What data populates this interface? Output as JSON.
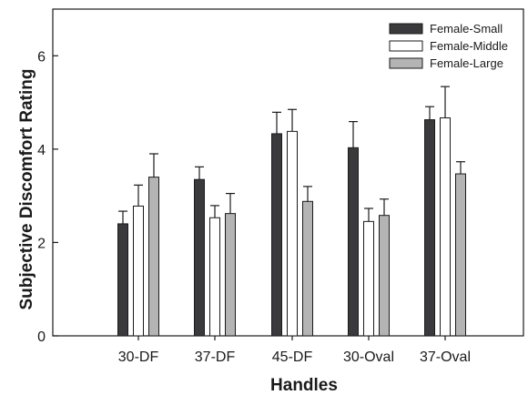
{
  "chart_data": {
    "type": "bar",
    "title": "",
    "xlabel": "Handles",
    "ylabel": "Subjective Discomfort Rating",
    "categories": [
      "30-DF",
      "37-DF",
      "45-DF",
      "30-Oval",
      "37-Oval"
    ],
    "ylim": [
      0,
      7
    ],
    "yticks": [
      0,
      2,
      4,
      6
    ],
    "grid": false,
    "legend_position": "top-right",
    "series": [
      {
        "name": "Female-Small",
        "color": "#3a3a3c",
        "values": [
          2.4,
          3.35,
          4.33,
          4.03,
          4.63
        ],
        "errors": [
          0.27,
          0.27,
          0.46,
          0.56,
          0.28
        ]
      },
      {
        "name": "Female-Middle",
        "color": "#ffffff",
        "values": [
          2.78,
          2.53,
          4.38,
          2.45,
          4.67
        ],
        "errors": [
          0.45,
          0.26,
          0.47,
          0.28,
          0.67
        ]
      },
      {
        "name": "Female-Large",
        "color": "#b4b4b4",
        "values": [
          3.4,
          2.62,
          2.88,
          2.58,
          3.47
        ],
        "errors": [
          0.5,
          0.43,
          0.32,
          0.35,
          0.26
        ]
      }
    ]
  }
}
